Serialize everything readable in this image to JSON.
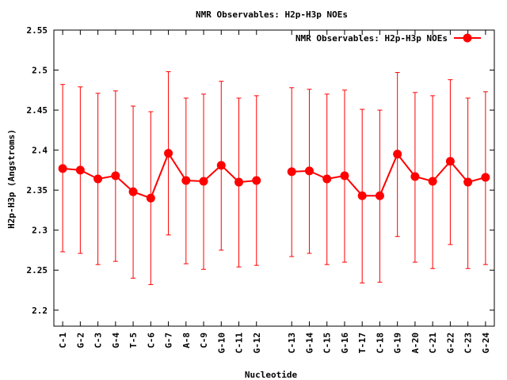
{
  "chart_data": {
    "type": "line",
    "title": "NMR Observables: H2p-H3p NOEs",
    "xlabel": "Nucleotide",
    "ylabel": "H2p-H3p (Angstroms)",
    "ylim": [
      2.18,
      2.55
    ],
    "yticks": [
      "2.2",
      "2.25",
      "2.3",
      "2.35",
      "2.4",
      "2.45",
      "2.5",
      "2.55"
    ],
    "grid": false,
    "legend_position": "top-right",
    "color": "#ff0000",
    "series": [
      {
        "name": "NMR Observables: H2p-H3p NOEs",
        "segments": [
          {
            "x": [
              1,
              2,
              3,
              4,
              5,
              6,
              7,
              8,
              9,
              10,
              11,
              12
            ],
            "categories": [
              "C-1",
              "G-2",
              "C-3",
              "G-4",
              "T-5",
              "C-6",
              "G-7",
              "A-8",
              "C-9",
              "G-10",
              "C-11",
              "G-12"
            ],
            "values": [
              2.377,
              2.375,
              2.364,
              2.368,
              2.348,
              2.34,
              2.396,
              2.362,
              2.361,
              2.381,
              2.36,
              2.362
            ],
            "err_low": [
              2.273,
              2.271,
              2.257,
              2.261,
              2.24,
              2.232,
              2.294,
              2.258,
              2.251,
              2.275,
              2.254,
              2.256
            ],
            "err_high": [
              2.482,
              2.479,
              2.471,
              2.474,
              2.455,
              2.448,
              2.498,
              2.465,
              2.47,
              2.486,
              2.465,
              2.468
            ]
          },
          {
            "x": [
              14,
              15,
              16,
              17,
              18,
              19,
              20,
              21,
              22,
              23,
              24,
              25
            ],
            "categories": [
              "C-13",
              "G-14",
              "C-15",
              "G-16",
              "T-17",
              "C-18",
              "G-19",
              "A-20",
              "C-21",
              "G-22",
              "C-23",
              "G-24"
            ],
            "values": [
              2.373,
              2.374,
              2.364,
              2.368,
              2.343,
              2.343,
              2.395,
              2.367,
              2.361,
              2.386,
              2.36,
              2.366
            ],
            "err_low": [
              2.267,
              2.271,
              2.257,
              2.26,
              2.234,
              2.235,
              2.292,
              2.26,
              2.252,
              2.282,
              2.252,
              2.257
            ],
            "err_high": [
              2.478,
              2.476,
              2.47,
              2.475,
              2.451,
              2.45,
              2.497,
              2.472,
              2.468,
              2.488,
              2.465,
              2.473
            ]
          }
        ]
      }
    ]
  }
}
